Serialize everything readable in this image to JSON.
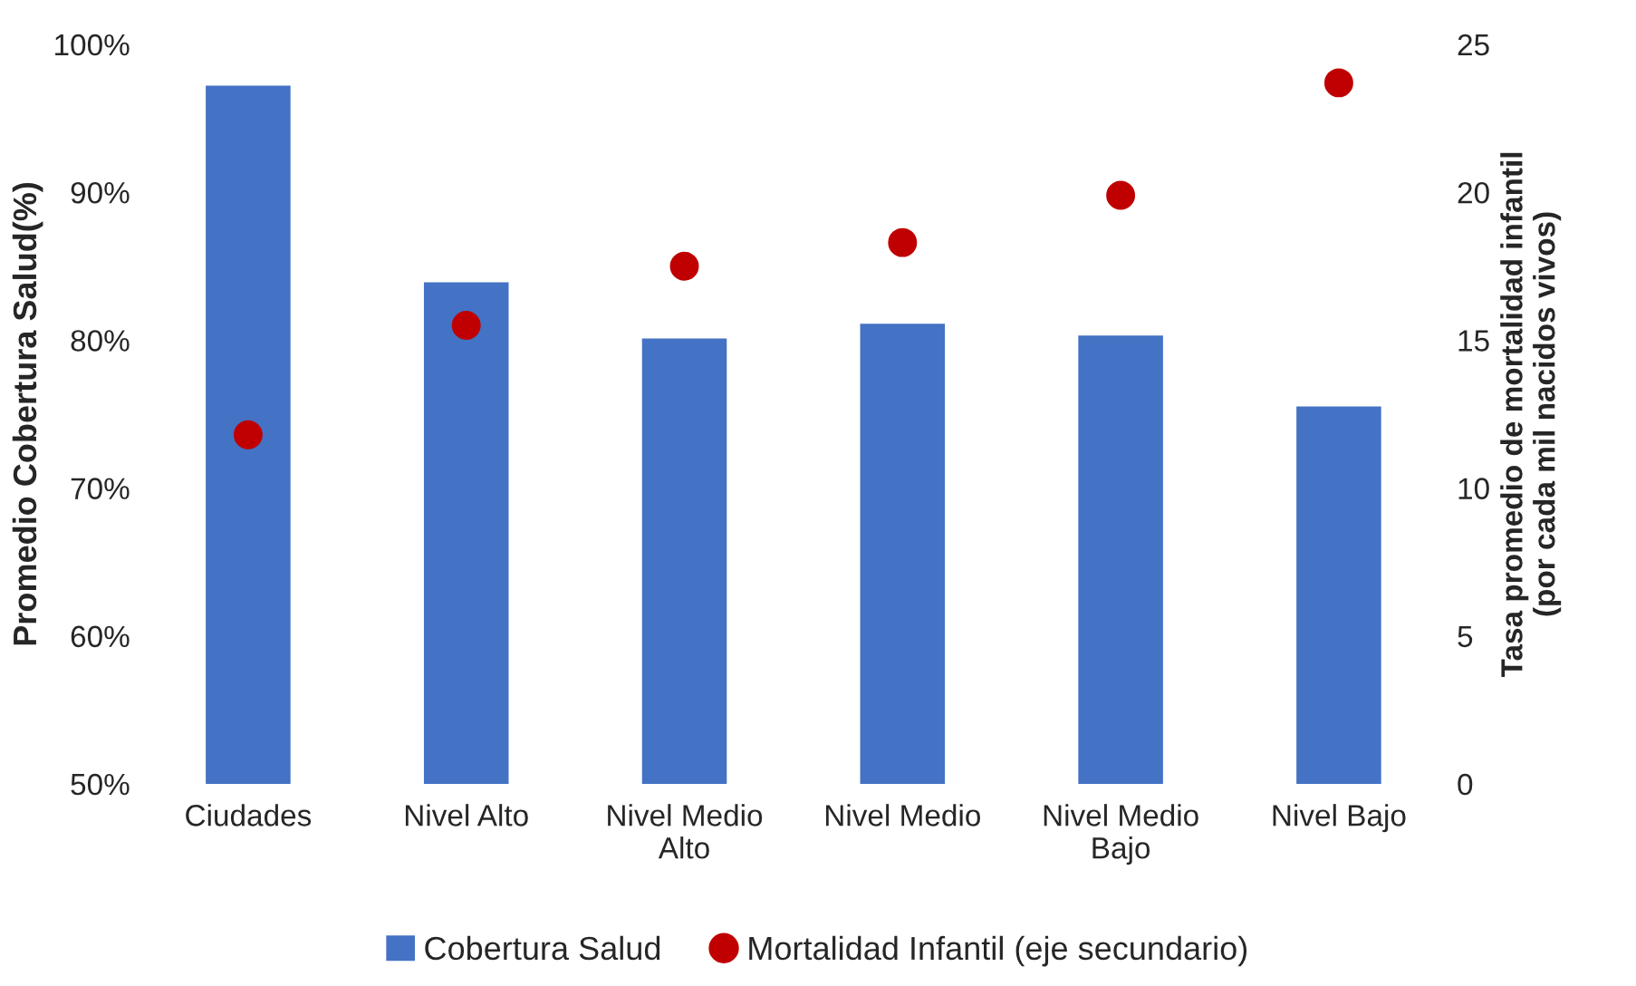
{
  "chart_data": {
    "type": "bar",
    "ylabel": "Promedio Cobertura Salud(%)",
    "y2label": "Tasa promedio de mortalidad infantil\n(por cada mil nacidos vivos)",
    "categories": [
      "Ciudades",
      "Nivel Alto",
      "Nivel Medio\nAlto",
      "Nivel Medio",
      "Nivel Medio\nBajo",
      "Nivel Bajo"
    ],
    "series": [
      {
        "name": "Cobertura Salud",
        "color": "#4472c4",
        "values": [
          97.3,
          84.0,
          80.2,
          81.2,
          80.4,
          75.6
        ]
      },
      {
        "name": "Mortalidad Infantil (eje secundario)",
        "type": "scatter",
        "axis": "y2",
        "color": "#c00000",
        "marker": "circle",
        "values": [
          11.8,
          15.5,
          17.5,
          18.3,
          19.9,
          23.7
        ]
      }
    ],
    "ylim": [
      50,
      100
    ],
    "yticks": [
      {
        "value": 50,
        "label": "50%"
      },
      {
        "value": 60,
        "label": "60%"
      },
      {
        "value": 70,
        "label": "70%"
      },
      {
        "value": 80,
        "label": "80%"
      },
      {
        "value": 90,
        "label": "90%"
      },
      {
        "value": 100,
        "label": "100%"
      }
    ],
    "y2lim": [
      0,
      25
    ],
    "y2ticks": [
      0,
      5,
      10,
      15,
      20,
      25
    ],
    "grid": false,
    "legend": "bottom"
  }
}
